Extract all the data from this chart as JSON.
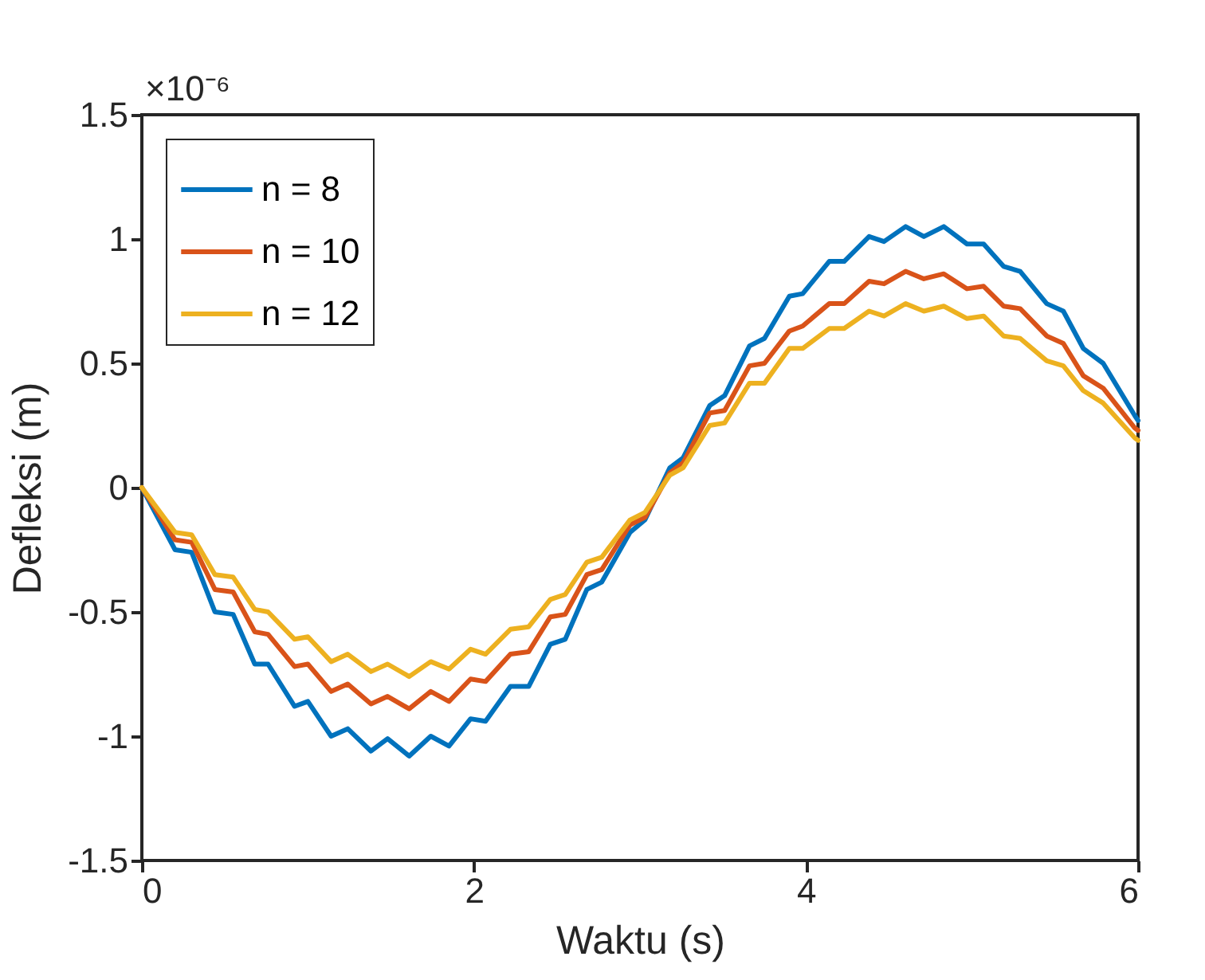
{
  "chart_data": {
    "type": "line",
    "xlabel": "Waktu (s)",
    "ylabel": "Defleksi (m)",
    "annotations": [
      "×10⁻⁶"
    ],
    "xlim": [
      0,
      6
    ],
    "xticks": [
      0,
      2,
      4,
      6
    ],
    "ylim": [
      -1.5,
      1.5
    ],
    "yticks": [
      -1.5,
      -1,
      -0.5,
      0,
      0.5,
      1,
      1.5
    ],
    "legend": "top left",
    "line_style": "solid",
    "x": [
      0,
      0.2,
      0.3,
      0.44,
      0.55,
      0.68,
      0.76,
      0.92,
      1.0,
      1.14,
      1.24,
      1.38,
      1.48,
      1.61,
      1.74,
      1.85,
      1.98,
      2.07,
      2.22,
      2.33,
      2.46,
      2.55,
      2.68,
      2.77,
      2.94,
      3.03,
      3.18,
      3.26,
      3.42,
      3.51,
      3.66,
      3.75,
      3.9,
      3.98,
      4.14,
      4.23,
      4.38,
      4.47,
      4.6,
      4.71,
      4.83,
      4.97,
      5.07,
      5.19,
      5.29,
      5.45,
      5.55,
      5.67,
      5.79,
      5.98,
      6
    ],
    "series": [
      {
        "name": "n = 8",
        "color": "#0072bd",
        "values": [
          0,
          -0.25,
          -0.26,
          -0.5,
          -0.51,
          -0.71,
          -0.71,
          -0.88,
          -0.86,
          -1.0,
          -0.97,
          -1.06,
          -1.01,
          -1.08,
          -1.0,
          -1.04,
          -0.93,
          -0.94,
          -0.8,
          -0.8,
          -0.63,
          -0.61,
          -0.41,
          -0.38,
          -0.18,
          -0.13,
          0.08,
          0.12,
          0.33,
          0.37,
          0.57,
          0.6,
          0.77,
          0.78,
          0.91,
          0.91,
          1.01,
          0.99,
          1.05,
          1.01,
          1.05,
          0.98,
          0.98,
          0.89,
          0.87,
          0.74,
          0.71,
          0.56,
          0.5,
          0.29,
          0.27
        ]
      },
      {
        "name": "n = 10",
        "color": "#d95319",
        "values": [
          0,
          -0.21,
          -0.22,
          -0.41,
          -0.42,
          -0.58,
          -0.59,
          -0.72,
          -0.71,
          -0.82,
          -0.79,
          -0.87,
          -0.84,
          -0.89,
          -0.82,
          -0.86,
          -0.77,
          -0.78,
          -0.67,
          -0.66,
          -0.52,
          -0.51,
          -0.35,
          -0.33,
          -0.15,
          -0.12,
          0.06,
          0.1,
          0.3,
          0.31,
          0.49,
          0.5,
          0.63,
          0.65,
          0.74,
          0.74,
          0.83,
          0.82,
          0.87,
          0.84,
          0.86,
          0.8,
          0.81,
          0.73,
          0.72,
          0.61,
          0.58,
          0.45,
          0.4,
          0.24,
          0.23
        ]
      },
      {
        "name": "n = 12",
        "color": "#edb120",
        "values": [
          0,
          -0.18,
          -0.19,
          -0.35,
          -0.36,
          -0.49,
          -0.5,
          -0.61,
          -0.6,
          -0.7,
          -0.67,
          -0.74,
          -0.71,
          -0.76,
          -0.7,
          -0.73,
          -0.65,
          -0.67,
          -0.57,
          -0.56,
          -0.45,
          -0.43,
          -0.3,
          -0.28,
          -0.13,
          -0.1,
          0.05,
          0.08,
          0.25,
          0.26,
          0.42,
          0.42,
          0.56,
          0.56,
          0.64,
          0.64,
          0.71,
          0.69,
          0.74,
          0.71,
          0.73,
          0.68,
          0.69,
          0.61,
          0.6,
          0.51,
          0.49,
          0.39,
          0.34,
          0.2,
          0.19
        ]
      }
    ]
  }
}
